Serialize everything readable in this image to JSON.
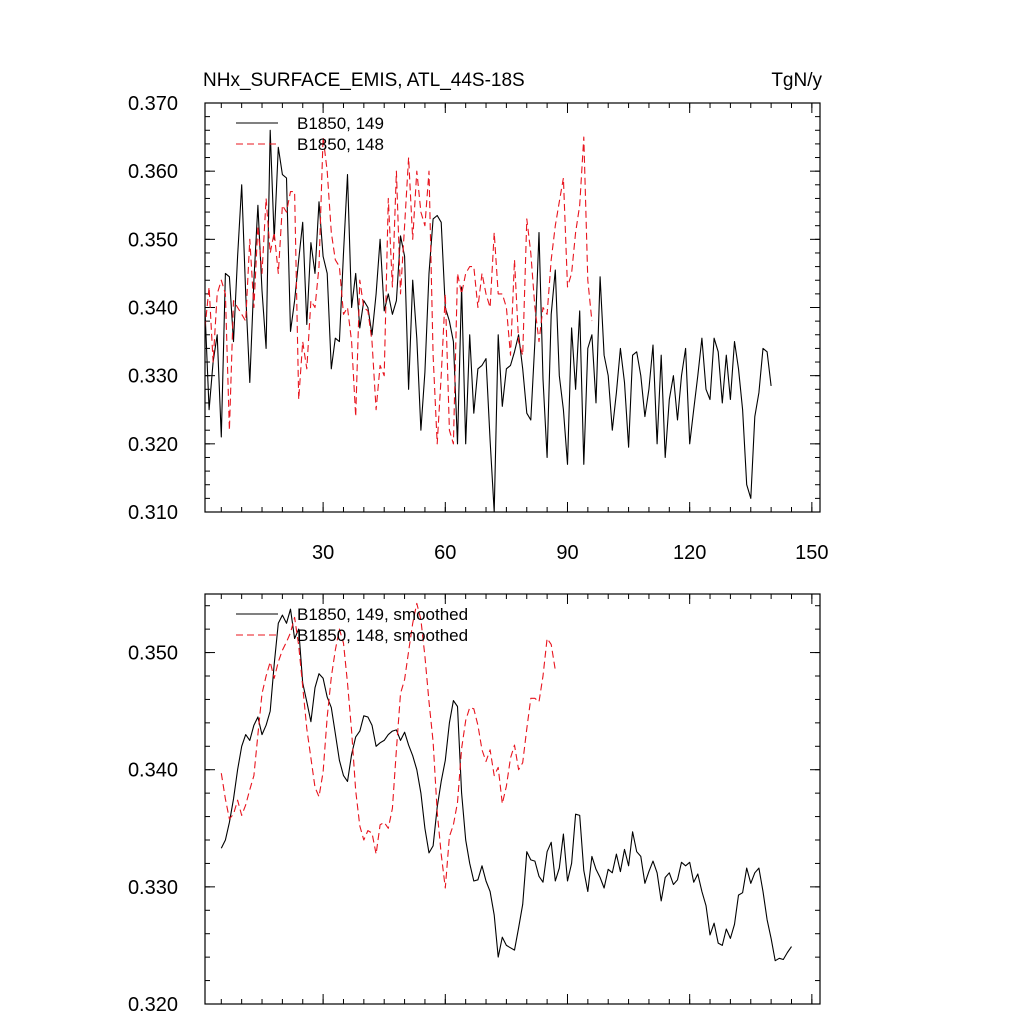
{
  "chart_data": [
    {
      "type": "line",
      "title": "NHx_SURFACE_EMIS, ATL_44S-18S",
      "units": "TgN/y",
      "xlim": [
        1,
        152
      ],
      "ylim": [
        0.31,
        0.37
      ],
      "xticks": [
        30,
        60,
        90,
        120,
        150
      ],
      "xtick_labels": [
        "30",
        "60",
        "90",
        "120",
        "150"
      ],
      "yticks": [
        0.31,
        0.32,
        0.33,
        0.34,
        0.35,
        0.36,
        0.37
      ],
      "ytick_labels": [
        "0.310",
        "0.320",
        "0.330",
        "0.340",
        "0.350",
        "0.360",
        "0.370"
      ],
      "legend_position": "top-left",
      "series": [
        {
          "name": "B1850, 149",
          "color": "#000000",
          "dash": "solid",
          "x_start": 1,
          "values": [
            0.3395,
            0.325,
            0.332,
            0.336,
            0.321,
            0.345,
            0.3445,
            0.335,
            0.3475,
            0.358,
            0.342,
            0.329,
            0.344,
            0.355,
            0.3425,
            0.334,
            0.366,
            0.35,
            0.3635,
            0.3595,
            0.359,
            0.3365,
            0.341,
            0.347,
            0.3525,
            0.3375,
            0.3495,
            0.345,
            0.3555,
            0.3475,
            0.345,
            0.331,
            0.3355,
            0.335,
            0.348,
            0.3595,
            0.34,
            0.345,
            0.337,
            0.341,
            0.34,
            0.336,
            0.342,
            0.35,
            0.3395,
            0.342,
            0.339,
            0.341,
            0.3505,
            0.3475,
            0.328,
            0.344,
            0.3355,
            0.322,
            0.3305,
            0.345,
            0.353,
            0.3535,
            0.3525,
            0.34,
            0.338,
            0.335,
            0.32,
            0.343,
            0.32,
            0.336,
            0.3245,
            0.331,
            0.3315,
            0.3325,
            0.3205,
            0.31,
            0.336,
            0.3255,
            0.331,
            0.3315,
            0.3335,
            0.336,
            0.331,
            0.3245,
            0.3235,
            0.335,
            0.351,
            0.3295,
            0.318,
            0.339,
            0.3455,
            0.33,
            0.325,
            0.317,
            0.337,
            0.328,
            0.3395,
            0.317,
            0.334,
            0.336,
            0.326,
            0.3445,
            0.333,
            0.33,
            0.322,
            0.3275,
            0.334,
            0.329,
            0.3195,
            0.333,
            0.3335,
            0.33,
            0.324,
            0.328,
            0.3345,
            0.32,
            0.333,
            0.318,
            0.3265,
            0.33,
            0.3235,
            0.33,
            0.334,
            0.32,
            0.325,
            0.33,
            0.3355,
            0.328,
            0.3265,
            0.3355,
            0.3335,
            0.326,
            0.333,
            0.3265,
            0.335,
            0.331,
            0.325,
            0.314,
            0.312,
            0.324,
            0.3275,
            0.334,
            0.3335,
            0.3285
          ]
        },
        {
          "name": "B1850, 148",
          "color": "#e8141e",
          "dash": "dashed",
          "x_start": 1,
          "values": [
            0.337,
            0.343,
            0.332,
            0.342,
            0.344,
            0.342,
            0.322,
            0.341,
            0.34,
            0.339,
            0.338,
            0.35,
            0.34,
            0.352,
            0.345,
            0.356,
            0.348,
            0.351,
            0.345,
            0.355,
            0.354,
            0.357,
            0.357,
            0.3265,
            0.335,
            0.331,
            0.341,
            0.34,
            0.346,
            0.365,
            0.36,
            0.351,
            0.347,
            0.346,
            0.339,
            0.34,
            0.335,
            0.324,
            0.344,
            0.34,
            0.3395,
            0.335,
            0.325,
            0.3315,
            0.33,
            0.356,
            0.343,
            0.36,
            0.342,
            0.352,
            0.362,
            0.35,
            0.36,
            0.354,
            0.352,
            0.36,
            0.333,
            0.32,
            0.33,
            0.342,
            0.322,
            0.32,
            0.345,
            0.342,
            0.345,
            0.346,
            0.346,
            0.34,
            0.345,
            0.342,
            0.34,
            0.351,
            0.342,
            0.342,
            0.34,
            0.333,
            0.347,
            0.335,
            0.333,
            0.353,
            0.348,
            0.34,
            0.335,
            0.34,
            0.339,
            0.347,
            0.352,
            0.3555,
            0.359,
            0.343,
            0.345,
            0.351,
            0.355,
            0.365,
            0.344,
            0.338
          ]
        }
      ]
    },
    {
      "type": "line",
      "xlim": [
        1,
        152
      ],
      "ylim": [
        0.32,
        0.355
      ],
      "xticks": [
        30,
        60,
        90,
        120,
        150
      ],
      "yticks": [
        0.32,
        0.33,
        0.34,
        0.35
      ],
      "ytick_labels": [
        "0.320",
        "0.330",
        "0.340",
        "0.350"
      ],
      "legend_position": "top-left",
      "series": [
        {
          "name": "B1850, 149, smoothed",
          "color": "#000000",
          "dash": "solid",
          "x_start": 5,
          "values": [
            0.3333,
            0.334,
            0.3355,
            0.3375,
            0.34,
            0.342,
            0.343,
            0.3425,
            0.3438,
            0.3445,
            0.343,
            0.3438,
            0.345,
            0.349,
            0.3525,
            0.3532,
            0.3525,
            0.3537,
            0.3512,
            0.352,
            0.3474,
            0.3458,
            0.3441,
            0.347,
            0.3482,
            0.3478,
            0.3462,
            0.3453,
            0.3431,
            0.3408,
            0.3395,
            0.339,
            0.3413,
            0.3428,
            0.3433,
            0.3446,
            0.3445,
            0.3438,
            0.342,
            0.3423,
            0.3425,
            0.343,
            0.3433,
            0.3434,
            0.3425,
            0.3432,
            0.3421,
            0.3412,
            0.34,
            0.338,
            0.335,
            0.3329,
            0.3335,
            0.3368,
            0.339,
            0.3408,
            0.344,
            0.3459,
            0.3454,
            0.338,
            0.334,
            0.332,
            0.3305,
            0.3306,
            0.3318,
            0.3305,
            0.3296,
            0.3276,
            0.324,
            0.3257,
            0.325,
            0.3248,
            0.3246,
            0.3265,
            0.3285,
            0.333,
            0.3323,
            0.3322,
            0.3309,
            0.3304,
            0.333,
            0.3338,
            0.3305,
            0.3316,
            0.3345,
            0.3305,
            0.332,
            0.3362,
            0.3361,
            0.3314,
            0.3296,
            0.3326,
            0.3315,
            0.3308,
            0.3299,
            0.3315,
            0.3312,
            0.3328,
            0.3313,
            0.3332,
            0.3318,
            0.3347,
            0.333,
            0.3326,
            0.3303,
            0.3313,
            0.3322,
            0.3312,
            0.3288,
            0.3308,
            0.3312,
            0.3302,
            0.3306,
            0.3321,
            0.3318,
            0.3321,
            0.3304,
            0.3311,
            0.3296,
            0.3284,
            0.3259,
            0.3269,
            0.3252,
            0.325,
            0.3264,
            0.3256,
            0.3268,
            0.3293,
            0.3295,
            0.3316,
            0.3303,
            0.3312,
            0.3316,
            0.3296,
            0.3272,
            0.3256,
            0.3237,
            0.3239,
            0.3238,
            0.3244,
            0.3249
          ]
        },
        {
          "name": "B1850, 148, smoothed",
          "color": "#e8141e",
          "dash": "dashed",
          "x_start": 5,
          "values": [
            0.3397,
            0.3375,
            0.3358,
            0.3362,
            0.3374,
            0.3361,
            0.337,
            0.3383,
            0.3395,
            0.343,
            0.3465,
            0.348,
            0.3492,
            0.3478,
            0.3492,
            0.3502,
            0.3509,
            0.3517,
            0.353,
            0.3506,
            0.3471,
            0.3435,
            0.341,
            0.3385,
            0.3377,
            0.3398,
            0.3445,
            0.3479,
            0.3502,
            0.352,
            0.3508,
            0.3474,
            0.3433,
            0.3382,
            0.3352,
            0.334,
            0.3348,
            0.3346,
            0.3328,
            0.3353,
            0.3355,
            0.335,
            0.3367,
            0.3417,
            0.3465,
            0.3477,
            0.3501,
            0.3525,
            0.3542,
            0.3528,
            0.3497,
            0.3458,
            0.3424,
            0.3364,
            0.3328,
            0.3299,
            0.3343,
            0.3353,
            0.3372,
            0.3418,
            0.3442,
            0.3453,
            0.3452,
            0.3438,
            0.3417,
            0.3407,
            0.3417,
            0.3395,
            0.3402,
            0.3371,
            0.3386,
            0.341,
            0.3421,
            0.34,
            0.3406,
            0.3435,
            0.3461,
            0.3461,
            0.3458,
            0.348,
            0.3512,
            0.3507,
            0.3485
          ]
        }
      ]
    }
  ]
}
